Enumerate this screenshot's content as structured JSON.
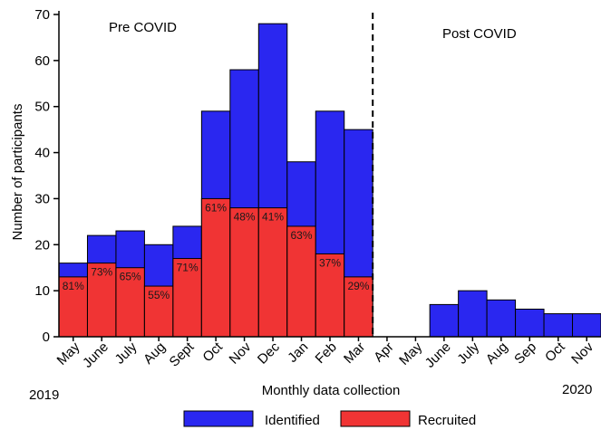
{
  "chart_data": {
    "type": "bar",
    "stacked": "overlay",
    "categories": [
      "May",
      "June",
      "July",
      "Aug",
      "Sept",
      "Oct",
      "Nov",
      "Dec",
      "Jan",
      "Feb",
      "Mar",
      "Apr",
      "May",
      "June",
      "July",
      "Aug",
      "Sep",
      "Oct",
      "Nov"
    ],
    "series": [
      {
        "name": "Identified",
        "color": "#2a27f0",
        "values": [
          16,
          22,
          23,
          20,
          24,
          49,
          58,
          68,
          38,
          49,
          45,
          0,
          0,
          7,
          10,
          8,
          6,
          5,
          5
        ]
      },
      {
        "name": "Recruited",
        "color": "#f03434",
        "values": [
          13,
          16,
          15,
          11,
          17,
          30,
          28,
          28,
          24,
          18,
          13,
          0,
          0,
          0,
          0,
          0,
          0,
          0,
          0
        ]
      }
    ],
    "percent_labels": [
      "81%",
      "73%",
      "65%",
      "55%",
      "71%",
      "61%",
      "48%",
      "41%",
      "63%",
      "37%",
      "29%",
      "",
      "",
      "",
      "",
      "",
      "",
      "",
      ""
    ],
    "ylabel": "Number of participants",
    "xlabel": "Monthly data collection",
    "ylim": [
      0,
      70
    ],
    "yticks": [
      0,
      10,
      20,
      30,
      40,
      50,
      60,
      70
    ],
    "annotations": [
      "Pre COVID",
      "Post COVID"
    ],
    "year_labels": [
      "2019",
      "2020"
    ],
    "divider_after_category": "Mar",
    "legend_position": "bottom",
    "grid": false
  }
}
